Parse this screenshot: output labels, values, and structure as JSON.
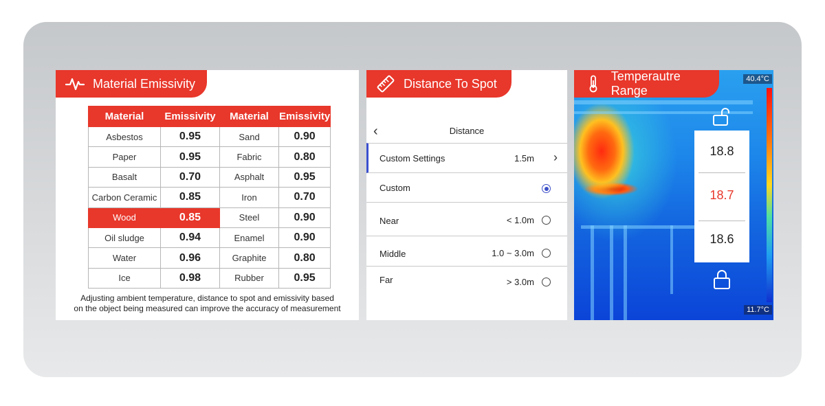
{
  "panels": {
    "emissivity": {
      "title": "Material Emissivity",
      "headers": [
        "Material",
        "Emissivity",
        "Material",
        "Emissivity"
      ],
      "rows": [
        [
          "Asbestos",
          "0.95",
          "Sand",
          "0.90"
        ],
        [
          "Paper",
          "0.95",
          "Fabric",
          "0.80"
        ],
        [
          "Basalt",
          "0.70",
          "Asphalt",
          "0.95"
        ],
        [
          "Carbon Ceramic",
          "0.85",
          "Iron",
          "0.70"
        ],
        [
          "Wood",
          "0.85",
          "Steel",
          "0.90"
        ],
        [
          "Oil sludge",
          "0.94",
          "Enamel",
          "0.90"
        ],
        [
          "Water",
          "0.96",
          "Graphite",
          "0.80"
        ],
        [
          "Ice",
          "0.98",
          "Rubber",
          "0.95"
        ]
      ],
      "highlighted_row": 4,
      "note_line1": "Adjusting ambient temperature, distance to spot and emissivity based",
      "note_line2": "on the object being measured can improve the accuracy of measurement"
    },
    "distance": {
      "title": "Distance To Spot",
      "screen_title": "Distance",
      "custom_settings": {
        "label": "Custom Settings",
        "value": "1.5m"
      },
      "options": [
        {
          "label": "Custom",
          "value": "",
          "selected": true
        },
        {
          "label": "Near",
          "value": "< 1.0m",
          "selected": false
        },
        {
          "label": "Middle",
          "value": "1.0 ~ 3.0m",
          "selected": false
        },
        {
          "label": "Far",
          "value": "> 3.0m",
          "selected": false
        }
      ]
    },
    "temperature": {
      "title": "Temperautre Range",
      "max": "40.4°C",
      "min": "11.7°C",
      "values": [
        "18.8",
        "18.7",
        "18.6"
      ],
      "selected_value": "18.7"
    }
  },
  "colors": {
    "accent": "#e8372b",
    "selection": "#3a4fd0"
  }
}
